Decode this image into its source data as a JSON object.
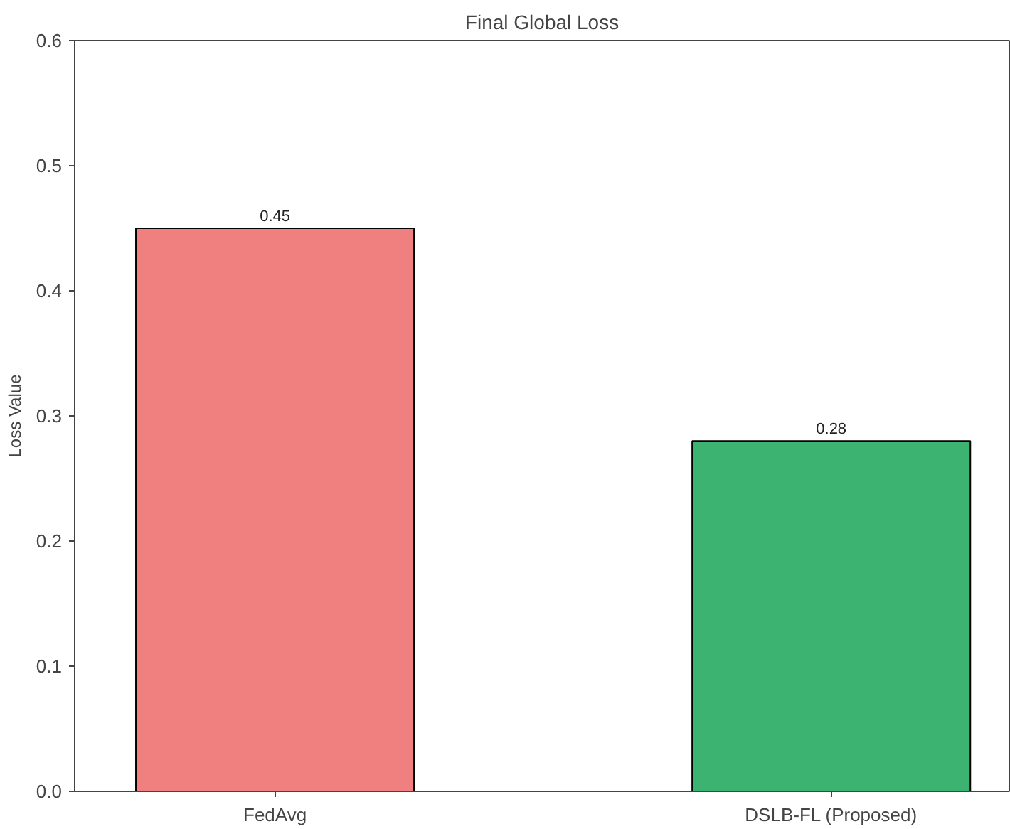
{
  "chart_data": {
    "type": "bar",
    "title": "Final Global Loss",
    "ylabel": "Loss Value",
    "categories": [
      "FedAvg",
      "DSLB-FL (Proposed)"
    ],
    "values": [
      0.45,
      0.28
    ],
    "colors": [
      "#f08080",
      "#3cb371"
    ],
    "ylim": [
      0,
      0.6
    ],
    "yticks": [
      {
        "value": 0,
        "label": "0.0"
      },
      0.1,
      0.2,
      0.3,
      0.4,
      0.5,
      0.6
    ],
    "data_labels": true,
    "grid": false
  }
}
